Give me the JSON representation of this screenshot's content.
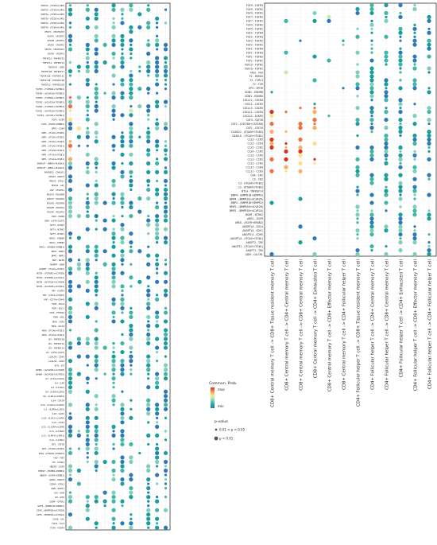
{
  "chart_data": {
    "type": "scatter",
    "columns": [
      "CD8+ Central memory T cell -> CD8+ Tissue resident memory T cell",
      "CD8+ Central memory T cell -> CD4+ Central memory T cell",
      "CD8+ Central memory T cell -> CD8+ Central memory T cell",
      "CD8+ Central memory T cell -> CD4+ Exhausted T cell",
      "CD8+ Central memory T cell -> CD8+ Effector memory T cell",
      "CD8+ Central memory T cell -> CD4+ Follicular helper T cell",
      "CD4+ Follicular helper T cell -> CD8+ Tissue resident memory T cell",
      "CD4+ Follicular helper T cell -> CD4+ Central memory T cell",
      "CD4+ Follicular helper T cell -> CD8+ Central memory T cell",
      "CD4+ Follicular helper T cell -> CD4+ Exhausted T cell",
      "CD4+ Follicular helper T cell -> CD8+ Effector memory T cell",
      "CD4+ Follicular helper T cell -> CD4+ Follicular helper T cell"
    ],
    "legend": {
      "color_title": "Commun. Prob.",
      "color_max": "max",
      "color_min": "min",
      "size_title": "p-value",
      "size_items": [
        "0.01 < p < 0.05",
        "p < 0.01"
      ]
    },
    "rows_left": [
      "WNT3A - (FZD6+LRP6)",
      "WNT3A - (FZD6+LRP5)",
      "WNT3A - (FZD5+LRP6)",
      "WNT3A - (FZD5+LRP5)",
      "WNT3A - (FZD4+LRP6)",
      "WNT3A - (FZD4+LRP5)",
      "VEGFC - VEGFR2R3",
      "VEGFC - VEGFR2",
      "VEGFB - VEGFR1",
      "VEGFA - VEGFR2",
      "VEGFA - VEGFR1R2",
      "VEGFA - VEGFR1",
      "TNFSF15 - TNFRSF25",
      "TNFSF14 - TNFRSF14",
      "TNFSF14 - LTBR",
      "TNFSF13B - TNFRSF17",
      "TNFSF13B - TNFRSF13C",
      "TNFSF13B - TNFRSF13B",
      "TNFSF10 - TNFRSF10B",
      "TGFB3 - (TGFBR1+TGFBR2)",
      "TGFB3 - (ACVR1B+TGFBR2)",
      "TGFB2 - (TGFBR1+TGFBR2)",
      "TGFB2 - (ACVR1B+TGFBR2)",
      "TGFB1 - (TGFBR1+TGFBR2)",
      "TGFB1 - (ACVR1B+TGFBR2)",
      "TGFB1 - (ACVR1+TGFBR1)",
      "TGFA - EGFR",
      "TGFA - (EGFR+ERBB2)",
      "SPP1 - CD44",
      "SPP1 - (ITGAV+ITGB6)",
      "SPP1 - (ITGAV+ITGB5)",
      "SPP1 - (ITGAV+ITGB3)",
      "SPP1 - (ITGAV+ITGB1)",
      "SPP1 - (ITGA9+ITGB1)",
      "SPP1 - (ITGA5+ITGB1)",
      "SPP1 - (ITGA4+ITGB1)",
      "SEMA3F - (NRP2+PLXNA3)",
      "SEMA3F - (NRP1+PLXNA3)",
      "RARRES2 - CMKLR1",
      "PRSS3 - PARD3",
      "PRSS3 - F2RL1",
      "PROS1 - AXL",
      "PGF - VEGFR1",
      "PDGFD - PDGFRB",
      "PDGFC - PDGFRA",
      "PDGFB - PDGFRB",
      "PDGFB - PDGFRA",
      "PDGFA - PDGFRA",
      "OSM - OSMR",
      "OSM - (LIFR+IL6ST)",
      "NTF3 - NTRK3",
      "NTF3 - NTRK2",
      "NTF3 - NTRK1",
      "NRG1 - ERBB4",
      "NRG1 - ERBB3",
      "NRG1 - (ERBB2+ERBB3)",
      "NPPC - NPR3",
      "NPPC - NPR2",
      "NGF - NGFR",
      "NAMPT - INSR",
      "NAMPT - (ITGA5+ITGB1)",
      "MSTN - (TGFBR1+ACVR2B)",
      "MSTN - (TGFBR1+ACVR2A)",
      "MSTN - (ACVR1B+ACVR2B)",
      "MSTN - (ACVR1B+ACVR2A)",
      "MIF - ACKR3",
      "MIF - (CD74+CXCR4)",
      "MIF - (CD74+CD44)",
      "MDK - SDC4",
      "MDK - SDC1",
      "MDK - PTPRZ1",
      "MDK - NCL",
      "MDK - LRP1",
      "MDK - ITGA4",
      "MDK - (ITGA6+ITGB1)",
      "MDK - (ITGA4+ITGB1)",
      "LTA - TNFRSF1B",
      "LTA - TNFRSF1A",
      "LTA - TNFRSF14",
      "LIF - (LIFR+IL6ST)",
      "LGALS9 - CD45",
      "LGALS9 - CD44",
      "KITL - KIT",
      "INHBA - (ACVR1B+ACVR2B)",
      "INHBA - (ACVR1B+ACVR2A)",
      "IL7 - (IL7R+IL2RG)",
      "IL4 - IL4R",
      "IL4 - IL13RA1",
      "IL4 - (IL4R+IL2RG)",
      "IL4 - (IL4R+IL13RA1)",
      "IL34 - CSF1R",
      "IL33 - (IL1RL1+IL1RAP)",
      "IL2 - (IL2RB+IL2RG)",
      "IL18 - IL1R2",
      "IL18 - (IL1R1+IL1RAP)",
      "IL1A - IL1R2",
      "IL15 - (IL15RA+IL2RB)",
      "IL13 - IL13RA2",
      "IL13 - (IL4R+IL13RA1)",
      "IL13 - IL13RA1",
      "IGF1 - IGF1R",
      "IGF1 - (ITGAV+ITGB3)",
      "IFNG - (IFNGR1+IFNGR2)",
      "HGF - MET",
      "HC - C5AR1",
      "HBEGF - EGFR",
      "HBEGF - (ERBB2+ERBB4)",
      "HBEGF - (EGFR+ERBB2)",
      "GZMA - PARD3",
      "GZMA - F2RL1",
      "GRN - SORT1",
      "GHI - GHR",
      "GH - GHR",
      "GDNF - GFRA1",
      "GDF5 - (BMPR1B+BMPR2)",
      "GDF5 - (BMPR1B+ACVR2B)",
      "GDF5 - (BMPR1B+ACVR2A)",
      "GAS6 - AXL",
      "FLT3L - FLT3",
      "FGF9 - FGFR4"
    ],
    "rows_right": [
      "FGF9 - FGFR3",
      "FGF9 - FGFR2",
      "FGF9 - FGFR1",
      "FGF7 - FGFR2",
      "FGF7 - FGFR1",
      "FGF5 - FGFR2",
      "FGF5 - FGFR1",
      "FGF2 - FGFR4",
      "FGF2 - FGFR3",
      "FGF2 - FGFR2",
      "FGF2 - FGFR1",
      "FGF1 - FGFR4",
      "FGF1 - FGFR3",
      "FGF1 - FGFR2",
      "FGF1 - FGFR1",
      "FGF10 - FGFR2",
      "FGF10 - FGFR1",
      "FASL - FAS",
      "F2 - PARD3",
      "F2 - F2RL3",
      "F2 - F2R",
      "EPO - EPOR",
      "EDN1 - EDNRB",
      "EDN1 - EDNRA",
      "CXCL12 - CXCR4",
      "CXCL2 - CXCR2",
      "CXCL13 - CXCR5",
      "CXCL12 - CXCR4",
      "CXCL12 - ACKR3",
      "CSF3 - CSF3R",
      "CSF2 - (CSF2RA+CSF2RB)",
      "CSF1 - CSF1R",
      "CD40LG - (ITGAM+ITGB2)",
      "CD40LG - (ITGA5+ITGB1)",
      "CCL5 - CCR5",
      "CCL5 - CCR3",
      "CCL5 - CCR1",
      "CCL4 - CCR5",
      "CCL3 - CCR5",
      "CCL3 - CCR1",
      "CCL2 - CCR2",
      "CCL17 - CCR4",
      "CCL11 - CCR3",
      "C4A - CR2",
      "C3 - CR2",
      "C3 - (ITGAX+ITGB2)",
      "C3 - (ITGAM+ITGB2)",
      "BTLA - TNFRSF14",
      "BMP4 - (BMPR1B+BMPR2)",
      "BMP4 - (BMPR1B+ACVR2A)",
      "BMP2 - (BMPR1B+BMPR2)",
      "BMP2 - (BMPR1B+ACVR2B)",
      "BMP2 - (BMPR1B+ACVR2A)",
      "BDNF - NTRK2",
      "AREG - EGFR",
      "AREG - (EGFR+ERBB2)",
      "ANGPTL4 - SDC4",
      "ANGPTL4 - SDC1",
      "ANGPTL4 - CDH5",
      "ANGPTL4 - (ITGA5+ITGB1)",
      "ANGPT2 - TEK",
      "ANGPT2 - (ITGA5+ITGB1)",
      "ANGPT1 - TEK",
      "ADM - CALCRL"
    ]
  }
}
